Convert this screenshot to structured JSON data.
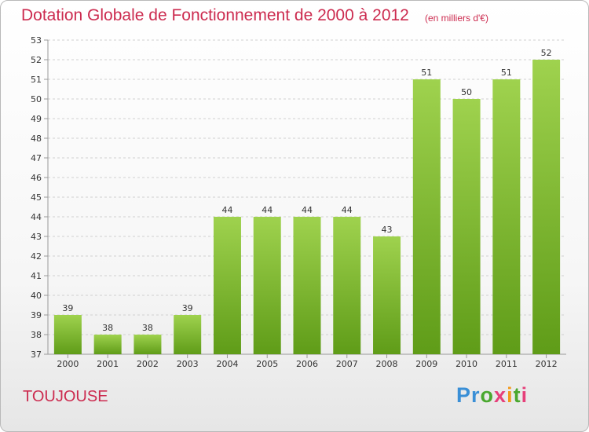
{
  "header": {
    "title": "Dotation Globale de Fonctionnement de 2000 à 2012",
    "unit": "(en milliers d'€)"
  },
  "footer": {
    "place": "TOUJOUSE",
    "brand": {
      "p1": "Pr",
      "p2": "o",
      "p3": "x",
      "p4": "i",
      "p5": "t",
      "p6": "i"
    }
  },
  "colors": {
    "title": "#cc2b4f",
    "bar_top": "#9fd24e",
    "bar_bottom": "#5f9c18",
    "grid": "#d0d0d0"
  },
  "chart_data": {
    "type": "bar",
    "title": "Dotation Globale de Fonctionnement de 2000 à 2012",
    "subtitle": "(en milliers d'€)",
    "categories": [
      "2000",
      "2001",
      "2002",
      "2003",
      "2004",
      "2005",
      "2006",
      "2007",
      "2008",
      "2009",
      "2010",
      "2011",
      "2012"
    ],
    "values": [
      39,
      38,
      38,
      39,
      44,
      44,
      44,
      44,
      43,
      51,
      50,
      51,
      52
    ],
    "ylim": [
      37,
      53
    ],
    "yticks": [
      37,
      38,
      39,
      40,
      41,
      42,
      43,
      44,
      45,
      46,
      47,
      48,
      49,
      50,
      51,
      52,
      53
    ],
    "grid": true,
    "xlabel": "",
    "ylabel": ""
  }
}
